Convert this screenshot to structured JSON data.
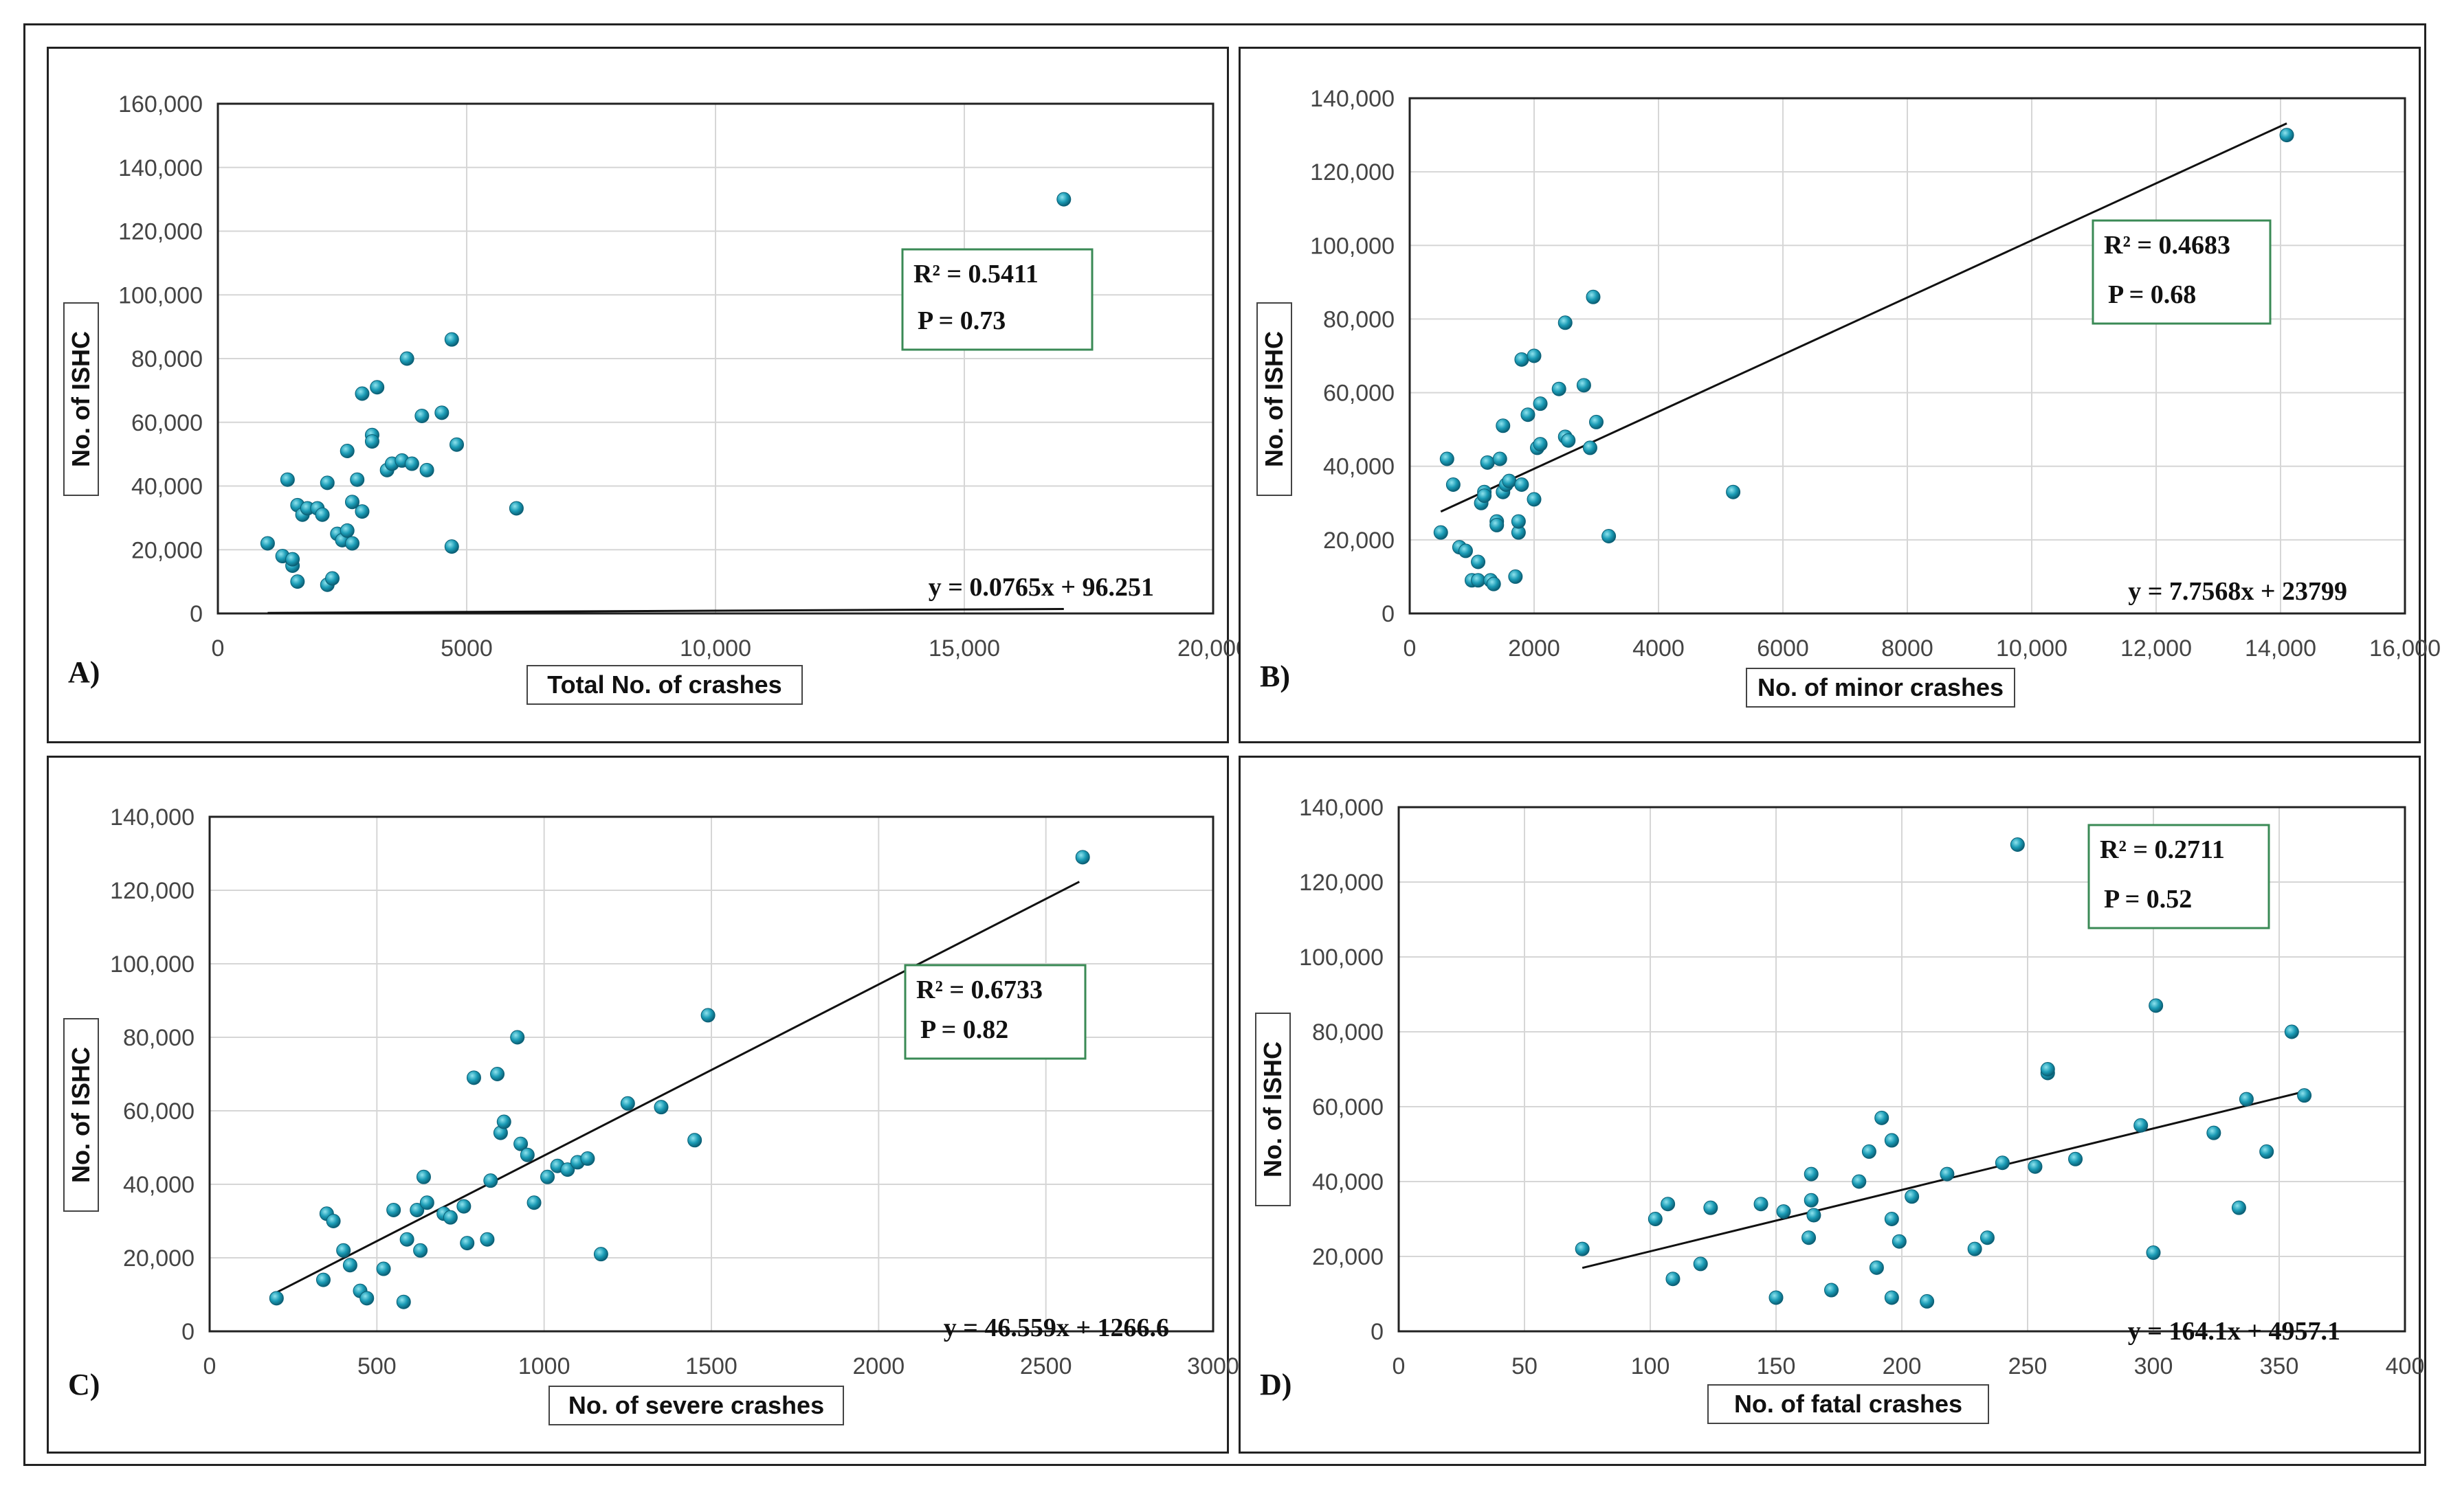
{
  "chart_data": [
    {
      "type": "scatter",
      "panel_label": "A)",
      "xlabel": "Total No. of crashes",
      "ylabel": "No. of ISHC",
      "xlim": [
        0,
        20000
      ],
      "ylim": [
        0,
        160000
      ],
      "xticks": [
        0,
        5000,
        10000,
        15000,
        20000
      ],
      "xtick_labels": [
        "0",
        "5000",
        "10,000",
        "15,000",
        "20,000"
      ],
      "yticks": [
        0,
        20000,
        40000,
        60000,
        80000,
        100000,
        120000,
        140000,
        160000
      ],
      "ytick_labels": [
        "0",
        "20,000",
        "40,000",
        "60,000",
        "80,000",
        "100,000",
        "120,000",
        "140,000",
        "160,000"
      ],
      "trendline": {
        "slope": 0.0765,
        "intercept": 96.251,
        "x_range": [
          1000,
          17000
        ]
      },
      "r2_label": "R² = 0.5411",
      "p_label": "P = 0.73",
      "equation": "y = 0.0765x + 96.251",
      "points": [
        [
          1000,
          22000
        ],
        [
          1300,
          18000
        ],
        [
          1400,
          42000
        ],
        [
          1500,
          15000
        ],
        [
          1500,
          17000
        ],
        [
          1600,
          10000
        ],
        [
          1600,
          34000
        ],
        [
          1700,
          31000
        ],
        [
          1800,
          33000
        ],
        [
          2000,
          33000
        ],
        [
          2100,
          31000
        ],
        [
          2200,
          41000
        ],
        [
          2200,
          9000
        ],
        [
          2300,
          11000
        ],
        [
          2400,
          25000
        ],
        [
          2500,
          23000
        ],
        [
          2600,
          26000
        ],
        [
          2600,
          51000
        ],
        [
          2700,
          22000
        ],
        [
          2700,
          35000
        ],
        [
          2800,
          42000
        ],
        [
          2900,
          32000
        ],
        [
          2900,
          69000
        ],
        [
          3100,
          56000
        ],
        [
          3100,
          54000
        ],
        [
          3200,
          71000
        ],
        [
          3400,
          45000
        ],
        [
          3500,
          47000
        ],
        [
          3700,
          48000
        ],
        [
          3800,
          80000
        ],
        [
          3900,
          47000
        ],
        [
          4100,
          62000
        ],
        [
          4200,
          45000
        ],
        [
          4500,
          63000
        ],
        [
          4700,
          86000
        ],
        [
          4700,
          21000
        ],
        [
          4800,
          53000
        ],
        [
          6000,
          33000
        ],
        [
          17000,
          130000
        ]
      ]
    },
    {
      "type": "scatter",
      "panel_label": "B)",
      "xlabel": "No. of minor crashes",
      "ylabel": "No. of ISHC",
      "xlim": [
        0,
        16000
      ],
      "ylim": [
        0,
        140000
      ],
      "xticks": [
        0,
        2000,
        4000,
        6000,
        8000,
        10000,
        12000,
        14000,
        16000
      ],
      "xtick_labels": [
        "0",
        "2000",
        "4000",
        "6000",
        "8000",
        "10,000",
        "12,000",
        "14,000",
        "16,000"
      ],
      "yticks": [
        0,
        20000,
        40000,
        60000,
        80000,
        100000,
        120000,
        140000
      ],
      "ytick_labels": [
        "0",
        "20,000",
        "40,000",
        "60,000",
        "80,000",
        "100,000",
        "120,000",
        "140,000"
      ],
      "trendline": {
        "slope": 7.7568,
        "intercept": 23799,
        "x_range": [
          500,
          14100
        ]
      },
      "r2_label": "R² = 0.4683",
      "p_label": "P = 0.68",
      "equation": "y = 7.7568x + 23799",
      "points": [
        [
          500,
          22000
        ],
        [
          600,
          42000
        ],
        [
          700,
          35000
        ],
        [
          800,
          18000
        ],
        [
          900,
          17000
        ],
        [
          1000,
          9000
        ],
        [
          1100,
          9000
        ],
        [
          1100,
          14000
        ],
        [
          1150,
          30000
        ],
        [
          1200,
          33000
        ],
        [
          1200,
          32000
        ],
        [
          1250,
          41000
        ],
        [
          1300,
          9000
        ],
        [
          1350,
          8000
        ],
        [
          1400,
          25000
        ],
        [
          1400,
          24000
        ],
        [
          1450,
          42000
        ],
        [
          1500,
          51000
        ],
        [
          1500,
          33000
        ],
        [
          1550,
          35000
        ],
        [
          1600,
          36000
        ],
        [
          1700,
          10000
        ],
        [
          1750,
          22000
        ],
        [
          1750,
          25000
        ],
        [
          1800,
          69000
        ],
        [
          1800,
          35000
        ],
        [
          1900,
          54000
        ],
        [
          2000,
          31000
        ],
        [
          2000,
          70000
        ],
        [
          2100,
          57000
        ],
        [
          2050,
          45000
        ],
        [
          2100,
          46000
        ],
        [
          2400,
          61000
        ],
        [
          2500,
          48000
        ],
        [
          2500,
          79000
        ],
        [
          2550,
          47000
        ],
        [
          2800,
          62000
        ],
        [
          2900,
          45000
        ],
        [
          2950,
          86000
        ],
        [
          3000,
          52000
        ],
        [
          3200,
          21000
        ],
        [
          5200,
          33000
        ],
        [
          14100,
          130000
        ]
      ]
    },
    {
      "type": "scatter",
      "panel_label": "C)",
      "xlabel": "No. of severe crashes",
      "ylabel": "No. of ISHC",
      "xlim": [
        0,
        3000
      ],
      "ylim": [
        0,
        140000
      ],
      "xticks": [
        0,
        500,
        1000,
        1500,
        2000,
        2500,
        3000
      ],
      "xtick_labels": [
        "0",
        "500",
        "1000",
        "1500",
        "2000",
        "2500",
        "3000"
      ],
      "yticks": [
        0,
        20000,
        40000,
        60000,
        80000,
        100000,
        120000,
        140000
      ],
      "ytick_labels": [
        "0",
        "20,000",
        "40,000",
        "60,000",
        "80,000",
        "100,000",
        "120,000",
        "140,000"
      ],
      "trendline": {
        "slope": 46.559,
        "intercept": 1266.6,
        "x_range": [
          200,
          2600
        ]
      },
      "r2_label": "R² = 0.6733",
      "p_label": "P = 0.82",
      "equation": "y = 46.559x + 1266.6",
      "points": [
        [
          200,
          9000
        ],
        [
          340,
          14000
        ],
        [
          350,
          32000
        ],
        [
          370,
          30000
        ],
        [
          400,
          22000
        ],
        [
          420,
          18000
        ],
        [
          450,
          11000
        ],
        [
          470,
          9000
        ],
        [
          520,
          17000
        ],
        [
          550,
          33000
        ],
        [
          580,
          8000
        ],
        [
          590,
          25000
        ],
        [
          620,
          33000
        ],
        [
          630,
          22000
        ],
        [
          640,
          42000
        ],
        [
          650,
          35000
        ],
        [
          700,
          32000
        ],
        [
          720,
          31000
        ],
        [
          760,
          34000
        ],
        [
          770,
          24000
        ],
        [
          790,
          69000
        ],
        [
          830,
          25000
        ],
        [
          840,
          41000
        ],
        [
          860,
          70000
        ],
        [
          870,
          54000
        ],
        [
          880,
          57000
        ],
        [
          920,
          80000
        ],
        [
          930,
          51000
        ],
        [
          950,
          48000
        ],
        [
          970,
          35000
        ],
        [
          1010,
          42000
        ],
        [
          1040,
          45000
        ],
        [
          1070,
          44000
        ],
        [
          1100,
          46000
        ],
        [
          1130,
          47000
        ],
        [
          1170,
          21000
        ],
        [
          1250,
          62000
        ],
        [
          1350,
          61000
        ],
        [
          1450,
          52000
        ],
        [
          1490,
          86000
        ],
        [
          2610,
          129000
        ]
      ]
    },
    {
      "type": "scatter",
      "panel_label": "D)",
      "xlabel": "No. of fatal crashes",
      "ylabel": "No. of ISHC",
      "xlim": [
        0,
        400
      ],
      "ylim": [
        0,
        140000
      ],
      "xticks": [
        0,
        50,
        100,
        150,
        200,
        250,
        300,
        350,
        400
      ],
      "xtick_labels": [
        "0",
        "50",
        "100",
        "150",
        "200",
        "250",
        "300",
        "350",
        "400"
      ],
      "yticks": [
        0,
        20000,
        40000,
        60000,
        80000,
        100000,
        120000,
        140000
      ],
      "ytick_labels": [
        "0",
        "20,000",
        "40,000",
        "60,000",
        "80,000",
        "100,000",
        "120,000",
        "140,000"
      ],
      "trendline": {
        "slope": 164.1,
        "intercept": 4957.1,
        "x_range": [
          73,
          360
        ]
      },
      "r2_label": "R² = 0.2711",
      "p_label": "P = 0.52",
      "equation": "y = 164.1x + 4957.1",
      "points": [
        [
          73,
          22000
        ],
        [
          102,
          30000
        ],
        [
          107,
          34000
        ],
        [
          109,
          14000
        ],
        [
          120,
          18000
        ],
        [
          124,
          33000
        ],
        [
          144,
          34000
        ],
        [
          150,
          9000
        ],
        [
          153,
          32000
        ],
        [
          163,
          25000
        ],
        [
          164,
          35000
        ],
        [
          164,
          42000
        ],
        [
          165,
          31000
        ],
        [
          172,
          11000
        ],
        [
          183,
          40000
        ],
        [
          187,
          48000
        ],
        [
          190,
          17000
        ],
        [
          192,
          57000
        ],
        [
          196,
          51000
        ],
        [
          196,
          30000
        ],
        [
          196,
          9000
        ],
        [
          199,
          24000
        ],
        [
          204,
          36000
        ],
        [
          210,
          8000
        ],
        [
          218,
          42000
        ],
        [
          229,
          22000
        ],
        [
          234,
          25000
        ],
        [
          240,
          45000
        ],
        [
          246,
          130000
        ],
        [
          253,
          44000
        ],
        [
          258,
          69000
        ],
        [
          258,
          70000
        ],
        [
          269,
          46000
        ],
        [
          295,
          55000
        ],
        [
          300,
          21000
        ],
        [
          301,
          87000
        ],
        [
          324,
          53000
        ],
        [
          334,
          33000
        ],
        [
          337,
          62000
        ],
        [
          345,
          48000
        ],
        [
          355,
          80000
        ],
        [
          360,
          63000
        ]
      ]
    }
  ]
}
